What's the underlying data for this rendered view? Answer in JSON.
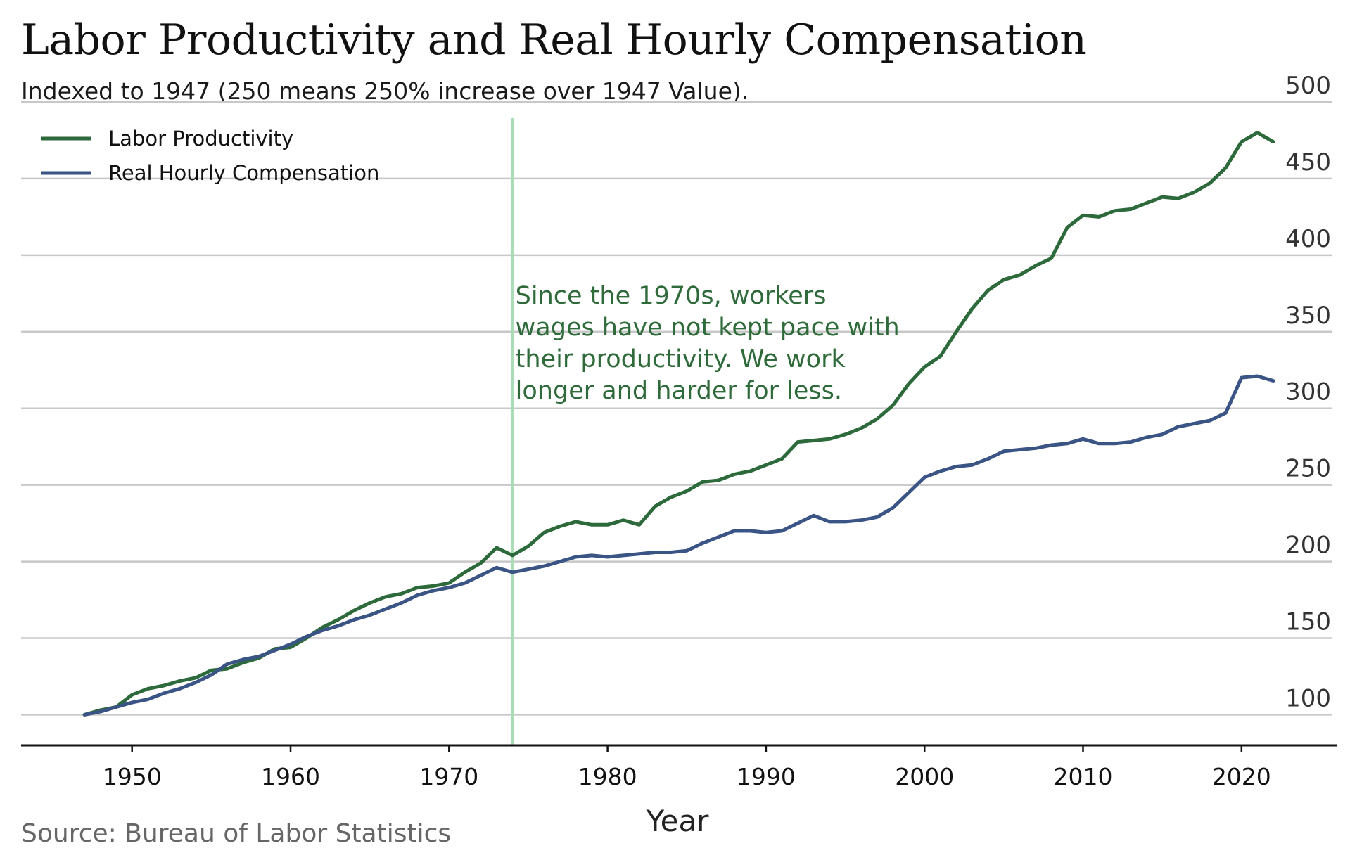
{
  "title": "Labor Productivity and Real Hourly Compensation",
  "subtitle": "Indexed to 1947 (250 means 250% increase over 1947 Value).",
  "source": "Source: Bureau of Labor Statistics",
  "chart_data": {
    "type": "line",
    "xlabel": "Year",
    "ylabel": "",
    "xlim": [
      1943,
      2026
    ],
    "ylim": [
      80,
      500
    ],
    "x_ticks": [
      1950,
      1960,
      1970,
      1980,
      1990,
      2000,
      2010,
      2020
    ],
    "y_ticks": [
      100,
      150,
      200,
      250,
      300,
      350,
      400,
      450,
      500
    ],
    "y_axis_side": "right",
    "grid": "horizontal",
    "legend_position": "top-left",
    "vline": {
      "x": 1974,
      "color": "#a8dcb4"
    },
    "annotation": {
      "x": 1974.1,
      "y": 348,
      "lines": [
        "Since the 1970s, workers",
        "wages have not kept pace with",
        "their productivity. We work",
        "longer and harder for less."
      ]
    },
    "series": [
      {
        "name": "Labor Productivity",
        "color": "#2d6a3b",
        "x": [
          1947,
          1948,
          1949,
          1950,
          1951,
          1952,
          1953,
          1954,
          1955,
          1956,
          1957,
          1958,
          1959,
          1960,
          1961,
          1962,
          1963,
          1964,
          1965,
          1966,
          1967,
          1968,
          1969,
          1970,
          1971,
          1972,
          1973,
          1974,
          1975,
          1976,
          1977,
          1978,
          1979,
          1980,
          1981,
          1982,
          1983,
          1984,
          1985,
          1986,
          1987,
          1988,
          1989,
          1990,
          1991,
          1992,
          1993,
          1994,
          1995,
          1996,
          1997,
          1998,
          1999,
          2000,
          2001,
          2002,
          2003,
          2004,
          2005,
          2006,
          2007,
          2008,
          2009,
          2010,
          2011,
          2012,
          2013,
          2014,
          2015,
          2016,
          2017,
          2018,
          2019,
          2020,
          2021,
          2022
        ],
        "y": [
          100,
          103,
          105,
          113,
          117,
          119,
          122,
          124,
          129,
          130,
          134,
          137,
          143,
          144,
          150,
          157,
          162,
          168,
          173,
          177,
          179,
          183,
          184,
          186,
          193,
          199,
          209,
          204,
          210,
          219,
          223,
          226,
          224,
          224,
          227,
          224,
          236,
          242,
          246,
          252,
          253,
          257,
          259,
          263,
          267,
          278,
          279,
          280,
          283,
          287,
          293,
          302,
          316,
          327,
          334,
          350,
          365,
          377,
          384,
          387,
          393,
          398,
          418,
          426,
          425,
          429,
          430,
          434,
          438,
          437,
          441,
          447,
          457,
          474,
          480,
          474
        ]
      },
      {
        "name": "Real Hourly Compensation",
        "color": "#3a5585",
        "x": [
          1947,
          1948,
          1949,
          1950,
          1951,
          1952,
          1953,
          1954,
          1955,
          1956,
          1957,
          1958,
          1959,
          1960,
          1961,
          1962,
          1963,
          1964,
          1965,
          1966,
          1967,
          1968,
          1969,
          1970,
          1971,
          1972,
          1973,
          1974,
          1975,
          1976,
          1977,
          1978,
          1979,
          1980,
          1981,
          1982,
          1983,
          1984,
          1985,
          1986,
          1987,
          1988,
          1989,
          1990,
          1991,
          1992,
          1993,
          1994,
          1995,
          1996,
          1997,
          1998,
          1999,
          2000,
          2001,
          2002,
          2003,
          2004,
          2005,
          2006,
          2007,
          2008,
          2009,
          2010,
          2011,
          2012,
          2013,
          2014,
          2015,
          2016,
          2017,
          2018,
          2019,
          2020,
          2021,
          2022
        ],
        "y": [
          100,
          102,
          105,
          108,
          110,
          114,
          117,
          121,
          126,
          133,
          136,
          138,
          142,
          146,
          151,
          155,
          158,
          162,
          165,
          169,
          173,
          178,
          181,
          183,
          186,
          191,
          196,
          193,
          195,
          197,
          200,
          203,
          204,
          203,
          204,
          205,
          206,
          206,
          207,
          212,
          216,
          220,
          220,
          219,
          220,
          225,
          230,
          226,
          226,
          227,
          229,
          235,
          245,
          255,
          259,
          262,
          263,
          267,
          272,
          273,
          274,
          276,
          277,
          280,
          277,
          277,
          278,
          281,
          283,
          288,
          290,
          292,
          297,
          320,
          321,
          318
        ]
      }
    ]
  }
}
